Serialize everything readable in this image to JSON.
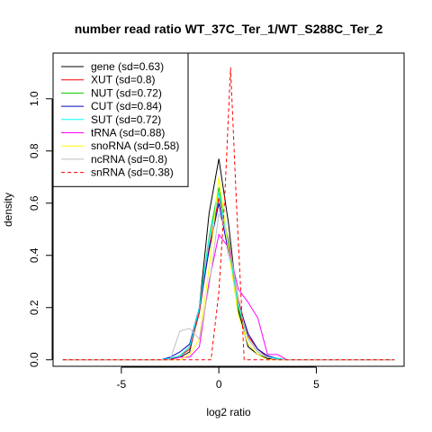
{
  "chart_data": {
    "type": "line",
    "title": "number read ratio WT_37C_Ter_1/WT_S288C_Ter_2",
    "xlabel": "log2 ratio",
    "ylabel": "density",
    "xlim": [
      -8.5,
      9.5
    ],
    "ylim": [
      -0.025,
      1.175
    ],
    "x_ticks": [
      -5,
      0,
      5
    ],
    "y_ticks": [
      0.0,
      0.2,
      0.4,
      0.6,
      0.8,
      1.0
    ],
    "x_tick_labels": [
      "-5",
      "0",
      "5"
    ],
    "y_tick_labels": [
      "0.0",
      "0.2",
      "0.4",
      "0.6",
      "0.8",
      "1.0"
    ],
    "grid": false,
    "legend_position": "top-left",
    "series": [
      {
        "name": "gene (sd=0.63)",
        "color": "#000000",
        "dash": "solid",
        "x": [
          -8,
          -3,
          -2.5,
          -2,
          -1.5,
          -1,
          -0.5,
          0,
          0.5,
          1,
          1.5,
          2,
          2.5,
          3,
          3.5,
          9
        ],
        "y": [
          0,
          0,
          0.003,
          0.01,
          0.03,
          0.2,
          0.56,
          0.77,
          0.52,
          0.19,
          0.05,
          0.02,
          0.005,
          0.002,
          0,
          0
        ]
      },
      {
        "name": "XUT (sd=0.8)",
        "color": "#ff0000",
        "dash": "solid",
        "x": [
          -8,
          -3,
          -2.5,
          -2,
          -1.5,
          -1,
          -0.5,
          0,
          0.5,
          1,
          1.5,
          2,
          2.5,
          3,
          3.5,
          9
        ],
        "y": [
          0,
          0,
          0.005,
          0.015,
          0.04,
          0.18,
          0.43,
          0.62,
          0.45,
          0.23,
          0.09,
          0.04,
          0.01,
          0.005,
          0,
          0
        ]
      },
      {
        "name": "NUT (sd=0.72)",
        "color": "#00cc00",
        "dash": "solid",
        "x": [
          -8,
          -3,
          -2.5,
          -2,
          -1.5,
          -1,
          -0.5,
          0,
          0.5,
          1,
          1.5,
          2,
          2.5,
          3,
          3.5,
          9
        ],
        "y": [
          0,
          0,
          0.005,
          0.015,
          0.05,
          0.2,
          0.47,
          0.66,
          0.44,
          0.2,
          0.08,
          0.03,
          0.01,
          0.005,
          0,
          0
        ]
      },
      {
        "name": "CUT (sd=0.84)",
        "color": "#0000cc",
        "dash": "solid",
        "x": [
          -8,
          -3,
          -2.5,
          -2,
          -1.5,
          -1,
          -0.5,
          0,
          0.5,
          1,
          1.5,
          2,
          2.5,
          3,
          3.5,
          9
        ],
        "y": [
          0,
          0,
          0.01,
          0.03,
          0.06,
          0.2,
          0.42,
          0.6,
          0.41,
          0.22,
          0.1,
          0.04,
          0.015,
          0.005,
          0,
          0
        ]
      },
      {
        "name": "SUT (sd=0.72)",
        "color": "#00ffff",
        "dash": "solid",
        "x": [
          -8,
          -3,
          -2.5,
          -2,
          -1.5,
          -1,
          -0.5,
          0,
          0.5,
          1,
          1.5,
          2,
          2.5,
          3,
          3.5,
          9
        ],
        "y": [
          0,
          0,
          0.005,
          0.015,
          0.05,
          0.2,
          0.46,
          0.64,
          0.43,
          0.21,
          0.08,
          0.03,
          0.01,
          0.005,
          0,
          0
        ]
      },
      {
        "name": "tRNA (sd=0.88)",
        "color": "#ff00ff",
        "dash": "solid",
        "x": [
          -8,
          -2.5,
          -2,
          -1.5,
          -1,
          -0.5,
          0,
          0.5,
          1,
          1.5,
          2,
          2.5,
          3,
          3.5,
          9
        ],
        "y": [
          0,
          0,
          0.01,
          0.01,
          0.05,
          0.3,
          0.48,
          0.43,
          0.27,
          0.22,
          0.16,
          0.02,
          0.02,
          0,
          0
        ]
      },
      {
        "name": "snoRNA (sd=0.58)",
        "color": "#ffff00",
        "dash": "solid",
        "x": [
          -8,
          -2,
          -1.5,
          -1,
          -0.5,
          0,
          0.5,
          1,
          1.5,
          2,
          2.5,
          9
        ],
        "y": [
          0,
          0,
          0.02,
          0.08,
          0.35,
          0.7,
          0.42,
          0.17,
          0.06,
          0.02,
          0,
          0
        ]
      },
      {
        "name": "ncRNA (sd=0.8)",
        "color": "#bebebe",
        "dash": "solid",
        "x": [
          -8,
          -2.5,
          -2,
          -1.5,
          -1,
          -0.5,
          0,
          0.5,
          1,
          1.5,
          2,
          2.5,
          3,
          9
        ],
        "y": [
          0,
          0,
          0.11,
          0.12,
          0.08,
          0.28,
          0.56,
          0.47,
          0.22,
          0.08,
          0.03,
          0.01,
          0,
          0
        ]
      },
      {
        "name": "snRNA (sd=0.38)",
        "color": "#ff0000",
        "dash": "dashed",
        "x": [
          -8,
          -0.4,
          0,
          0.3,
          0.6,
          0.9,
          1.3,
          9
        ],
        "y": [
          0,
          0,
          0.26,
          0.62,
          1.12,
          0.6,
          0,
          0
        ]
      }
    ]
  }
}
